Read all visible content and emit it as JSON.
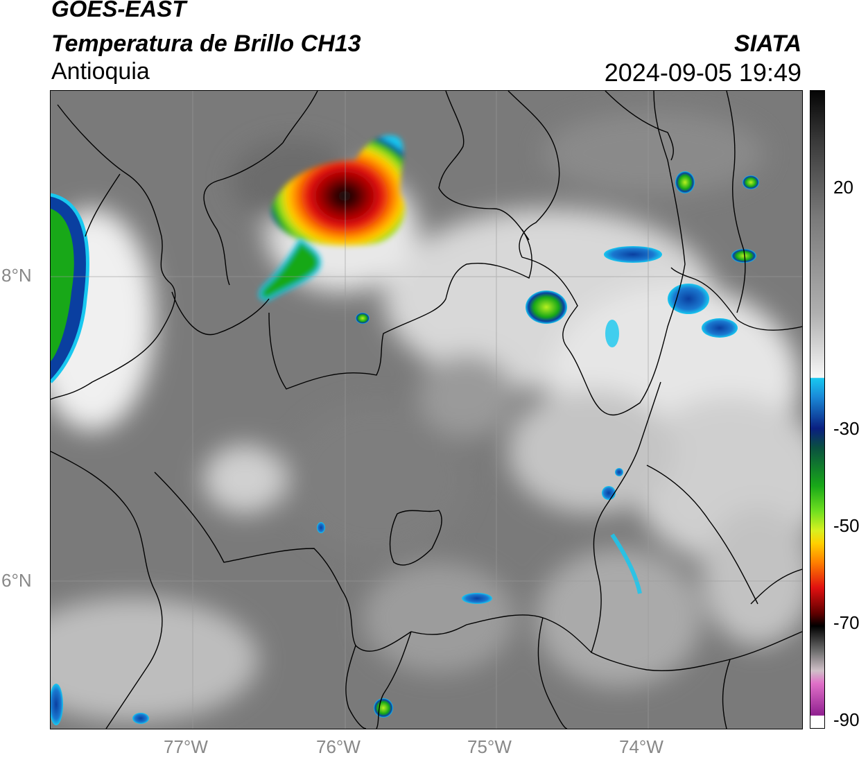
{
  "header": {
    "satellite": "GOES-EAST",
    "product": "Temperatura de Brillo CH13",
    "region": "Antioquia",
    "organization": "SIATA",
    "timestamp": "2024-09-05 19:49"
  },
  "map": {
    "lon_labels": [
      "77°W",
      "76°W",
      "75°W",
      "74°W"
    ],
    "lat_labels": [
      "8°N",
      "6°N"
    ],
    "grid": true,
    "variable": "brightness temperature",
    "units_hint": "°C"
  },
  "colorbar": {
    "tick_labels": [
      "20",
      "-30",
      "-50",
      "-70",
      "-90"
    ],
    "colors": {
      "gray_light": "#f4f4f4",
      "gray_dark": "#3a3a3a",
      "cyan": "#18c8f0",
      "blue": "#0a3fa0",
      "green": "#18a818",
      "lime": "#b8f020",
      "yellow": "#ffd000",
      "orange": "#ff8000",
      "red": "#e01010",
      "darkred": "#600000",
      "black": "#000000",
      "pink": "#e070c8",
      "purple": "#902090"
    }
  }
}
